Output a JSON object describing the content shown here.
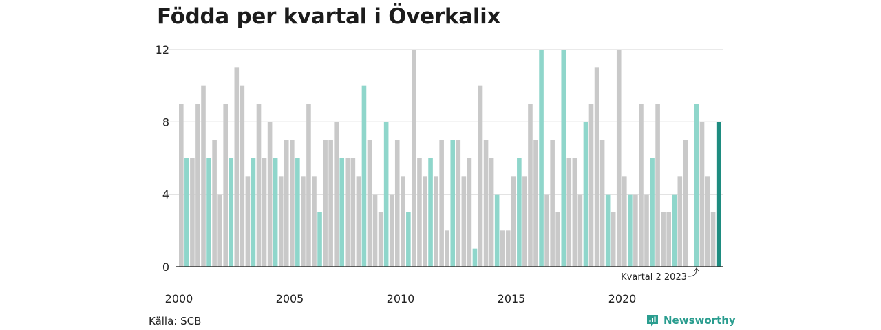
{
  "title": "Födda per kvartal i Överkalix",
  "source": "Källa: SCB",
  "brand": "Newsworthy",
  "colors": {
    "default_bar": "#c9c9c9",
    "same_quarter_bar": "#8fd6cb",
    "latest_bar": "#1e8c80",
    "grid": "#e3e3e3",
    "axis": "#333333",
    "brand": "#2a9d8f"
  },
  "chart_data": {
    "type": "bar",
    "title": "Födda per kvartal i Överkalix",
    "xlabel": "",
    "ylabel": "",
    "ylim": [
      0,
      12
    ],
    "yticks": [
      0,
      4,
      8,
      12
    ],
    "xtick_labels": [
      "2000",
      "2005",
      "2010",
      "2015",
      "2020"
    ],
    "grid": true,
    "period_start": "2000 kvartal 1",
    "period_end": "2024 kvartal 2",
    "values": [
      9,
      6,
      6,
      9,
      10,
      6,
      7,
      4,
      9,
      6,
      11,
      10,
      5,
      6,
      9,
      6,
      8,
      6,
      5,
      7,
      7,
      6,
      5,
      9,
      5,
      3,
      7,
      7,
      8,
      6,
      6,
      6,
      5,
      10,
      7,
      4,
      3,
      8,
      4,
      7,
      5,
      3,
      12,
      6,
      5,
      6,
      5,
      7,
      2,
      7,
      7,
      5,
      6,
      1,
      10,
      7,
      6,
      4,
      2,
      2,
      5,
      6,
      5,
      9,
      7,
      12,
      4,
      7,
      3,
      12,
      6,
      6,
      4,
      8,
      9,
      11,
      7,
      4,
      3,
      12,
      5,
      4,
      4,
      9,
      4,
      6,
      9,
      3,
      3,
      4,
      5,
      7,
      0,
      9,
      8,
      5,
      3,
      8
    ],
    "highlight_quarter": 2,
    "latest_highlight": true,
    "annotation": "Kvartal 2 2023"
  }
}
